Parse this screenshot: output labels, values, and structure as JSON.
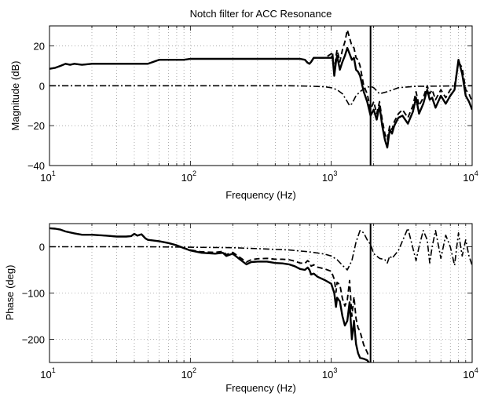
{
  "chart_data": [
    {
      "type": "line",
      "title": "Notch filter for ACC Resonance",
      "xlabel": "Frequency (Hz)",
      "ylabel": "Magnitude (dB)",
      "xscale": "log",
      "xlim": [
        10,
        10000
      ],
      "ylim": [
        -40,
        30
      ],
      "grid": true,
      "xticks": [
        {
          "base": "10",
          "exp": "1",
          "value": 10
        },
        {
          "base": "10",
          "exp": "2",
          "value": 100
        },
        {
          "base": "10",
          "exp": "3",
          "value": 1000
        },
        {
          "base": "10",
          "exp": "4",
          "value": 10000
        }
      ],
      "yticks": [
        {
          "label": "20",
          "value": 20
        },
        {
          "label": "0",
          "value": 0
        },
        {
          "label": "−20",
          "value": -20
        },
        {
          "label": "−40",
          "value": -40
        }
      ],
      "vline_x": 1900,
      "series": [
        {
          "style": "solid",
          "x": [
            10,
            11,
            12,
            13,
            14,
            15,
            17,
            20,
            25,
            30,
            35,
            40,
            42,
            45,
            50,
            60,
            70,
            80,
            90,
            100,
            120,
            150,
            200,
            250,
            300,
            350,
            400,
            500,
            600,
            650,
            680,
            700,
            720,
            750,
            800,
            850,
            900,
            950,
            1000,
            1020,
            1050,
            1080,
            1100,
            1150,
            1200,
            1250,
            1300,
            1350,
            1400,
            1450,
            1500,
            1550,
            1600,
            1700,
            1800,
            1900,
            2000,
            2100,
            2200,
            2300,
            2400,
            2500,
            2600,
            2700,
            2800,
            3000,
            3200,
            3500,
            3800,
            4000,
            4200,
            4500,
            4800,
            5000,
            5200,
            5500,
            6000,
            6500,
            7000,
            7500,
            8000,
            8500,
            9000,
            9500,
            10000
          ],
          "y": [
            8.5,
            9,
            10,
            11,
            10.5,
            11,
            10.5,
            11,
            11,
            11,
            11,
            11,
            11,
            11,
            11,
            13,
            13,
            13,
            13,
            13.5,
            13.5,
            13.5,
            13.5,
            13.5,
            13.5,
            13.5,
            13.5,
            13.5,
            13.5,
            13,
            11.5,
            11,
            12,
            14,
            14,
            14,
            14,
            14,
            14,
            15,
            5,
            12,
            15,
            8,
            12,
            15,
            19,
            16,
            13,
            14,
            8,
            7,
            5,
            -3,
            -8,
            -15,
            -12,
            -17,
            -10,
            -20,
            -27,
            -31,
            -22,
            -24,
            -20,
            -16,
            -15,
            -19,
            -13,
            -6,
            -14,
            -9,
            -2,
            -7,
            -6,
            -11,
            -5,
            -9,
            -5,
            -2,
            13,
            6,
            -5,
            -8,
            -12
          ]
        },
        {
          "style": "dashed",
          "x": [
            10,
            11,
            12,
            13,
            14,
            15,
            17,
            20,
            25,
            30,
            35,
            40,
            42,
            45,
            50,
            60,
            70,
            80,
            90,
            100,
            120,
            150,
            200,
            250,
            300,
            350,
            400,
            500,
            600,
            650,
            680,
            700,
            720,
            750,
            800,
            850,
            900,
            950,
            1000,
            1020,
            1050,
            1080,
            1100,
            1150,
            1200,
            1250,
            1300,
            1350,
            1400,
            1450,
            1500,
            1550,
            1600,
            1700,
            1800,
            1900,
            2000,
            2100,
            2200,
            2300,
            2400,
            2500,
            2600,
            2700,
            2800,
            3000,
            3200,
            3500,
            3800,
            4000,
            4200,
            4500,
            4800,
            5000,
            5200,
            5500,
            6000,
            6500,
            7000,
            7500,
            8000,
            8500,
            9000,
            9500,
            10000
          ],
          "y": [
            8.5,
            9,
            10,
            11,
            10.5,
            11,
            10.5,
            11,
            11,
            11,
            11,
            11,
            11,
            11,
            11,
            13,
            13,
            13,
            13,
            13.5,
            13.5,
            13.5,
            13.5,
            13.5,
            13.5,
            13.5,
            13.5,
            13.5,
            13.5,
            13,
            11.5,
            11,
            12,
            14,
            14,
            14,
            14,
            15,
            16,
            17,
            7,
            15,
            18,
            12,
            18,
            22,
            28,
            24,
            20,
            19,
            14,
            13,
            10,
            0,
            -4,
            -12,
            -8,
            -14,
            -8,
            -17,
            -24,
            -27,
            -20,
            -22,
            -18,
            -14,
            -12,
            -16,
            -10,
            -3,
            -10,
            -6,
            0,
            -4,
            -2,
            -7,
            -2,
            -6,
            -2,
            0,
            12,
            9,
            -2,
            -4,
            -8
          ]
        },
        {
          "style": "dashdot",
          "x": [
            10,
            50,
            100,
            200,
            300,
            500,
            700,
            900,
            1000,
            1100,
            1200,
            1300,
            1350,
            1400,
            1450,
            1500,
            1600,
            1700,
            1800,
            1900,
            2000,
            2200,
            2500,
            3000,
            4000,
            10000
          ],
          "y": [
            0,
            0,
            0,
            0,
            0,
            0,
            -0.2,
            -0.5,
            -1,
            -2,
            -4,
            -8,
            -10,
            -9,
            -7,
            -5,
            -3,
            -1.5,
            -0.8,
            -0.3,
            -1,
            -4,
            -3,
            -1,
            -0.3,
            0
          ]
        }
      ]
    },
    {
      "type": "line",
      "xlabel": "Frequency (Hz)",
      "ylabel": "Phase (deg)",
      "xscale": "log",
      "xlim": [
        10,
        10000
      ],
      "ylim": [
        -250,
        50
      ],
      "grid": true,
      "xticks": [
        {
          "base": "10",
          "exp": "1",
          "value": 10
        },
        {
          "base": "10",
          "exp": "2",
          "value": 100
        },
        {
          "base": "10",
          "exp": "3",
          "value": 1000
        },
        {
          "base": "10",
          "exp": "4",
          "value": 10000
        }
      ],
      "yticks": [
        {
          "label": "0",
          "value": 0
        },
        {
          "label": "−100",
          "value": -100
        },
        {
          "label": "−200",
          "value": -200
        }
      ],
      "vline_x": 1900,
      "series": [
        {
          "style": "solid",
          "x": [
            10,
            11,
            12,
            13,
            15,
            17,
            20,
            25,
            30,
            35,
            38,
            40,
            42,
            45,
            48,
            50,
            60,
            70,
            80,
            90,
            100,
            120,
            150,
            170,
            180,
            200,
            220,
            250,
            270,
            300,
            350,
            400,
            450,
            500,
            550,
            600,
            650,
            680,
            700,
            720,
            750,
            800,
            900,
            1000,
            1050,
            1080,
            1100,
            1150,
            1200,
            1250,
            1300,
            1350,
            1400,
            1450,
            1500,
            1550,
            1600,
            1700,
            1800,
            1850
          ],
          "y": [
            40,
            39,
            37,
            33,
            29,
            26,
            26,
            24,
            22,
            22,
            23,
            28,
            24,
            27,
            18,
            15,
            12,
            8,
            3,
            -3,
            -8,
            -13,
            -15,
            -13,
            -20,
            -15,
            -25,
            -38,
            -33,
            -32,
            -32,
            -35,
            -36,
            -38,
            -42,
            -48,
            -50,
            -45,
            -50,
            -60,
            -58,
            -65,
            -72,
            -80,
            -100,
            -130,
            -110,
            -118,
            -150,
            -170,
            -160,
            -120,
            -200,
            -160,
            -210,
            -230,
            -240,
            -242,
            -245,
            -250
          ]
        },
        {
          "style": "dashed",
          "x": [
            10,
            11,
            12,
            13,
            15,
            17,
            20,
            25,
            30,
            35,
            38,
            40,
            42,
            45,
            48,
            50,
            60,
            70,
            80,
            90,
            100,
            120,
            150,
            170,
            180,
            200,
            220,
            250,
            270,
            300,
            350,
            400,
            450,
            500,
            550,
            600,
            650,
            680,
            700,
            720,
            750,
            800,
            900,
            1000,
            1050,
            1080,
            1100,
            1150,
            1200,
            1250,
            1300,
            1350,
            1400,
            1450,
            1500,
            1550,
            1600,
            1700,
            1800,
            1850
          ],
          "y": [
            40,
            39,
            37,
            33,
            29,
            26,
            26,
            24,
            22,
            22,
            23,
            28,
            24,
            27,
            18,
            15,
            12,
            8,
            3,
            -3,
            -7,
            -11,
            -12,
            -10,
            -17,
            -12,
            -21,
            -33,
            -28,
            -26,
            -25,
            -27,
            -27,
            -28,
            -31,
            -35,
            -36,
            -30,
            -33,
            -42,
            -39,
            -44,
            -48,
            -53,
            -70,
            -98,
            -77,
            -82,
            -112,
            -128,
            -115,
            -73,
            -150,
            -108,
            -155,
            -175,
            -183,
            -212,
            -228,
            -238
          ]
        },
        {
          "style": "dashdot",
          "x": [
            10,
            50,
            100,
            200,
            300,
            500,
            700,
            900,
            1000,
            1100,
            1200,
            1300,
            1400,
            1500,
            1600,
            1700,
            1800,
            1900,
            2000,
            2200,
            2400,
            2500,
            2600,
            2700,
            3000,
            3500,
            4000,
            4200,
            4500,
            4800,
            5000,
            5200,
            5500,
            6000,
            6500,
            7000,
            7500,
            8000,
            8500,
            9000,
            9500,
            10000
          ],
          "y": [
            0,
            0,
            -1,
            -2,
            -4,
            -7,
            -11,
            -16,
            -20,
            -28,
            -40,
            -50,
            -30,
            10,
            35,
            30,
            15,
            5,
            -15,
            -25,
            -28,
            -35,
            -20,
            -25,
            -8,
            40,
            -30,
            0,
            35,
            15,
            -35,
            0,
            35,
            -25,
            25,
            0,
            -40,
            30,
            -20,
            15,
            -20,
            -40
          ]
        }
      ]
    }
  ]
}
